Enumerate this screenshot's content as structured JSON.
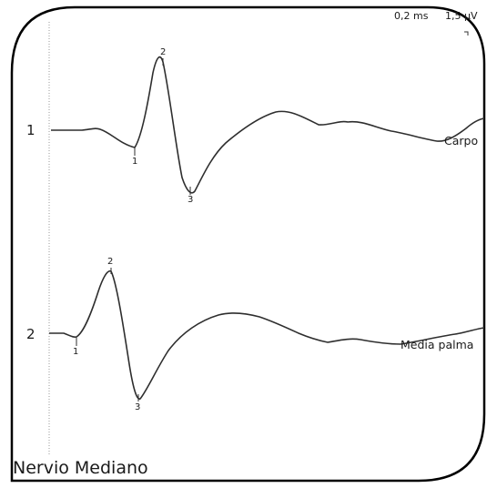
{
  "panel": {
    "title": "Nervio Mediano"
  },
  "scale": {
    "time": "0,2 ms",
    "amplitude": "1,5 µV"
  },
  "traces": [
    {
      "number": "1",
      "label": "Carpo",
      "peaks": [
        "1",
        "2",
        "3"
      ]
    },
    {
      "number": "2",
      "label": "Media palma",
      "peaks": [
        "1",
        "2",
        "3"
      ]
    }
  ],
  "colors": {
    "frame": "#000000",
    "trace": "#2e2e2e",
    "baseline_marker": "#9a9a9a",
    "text": "#1a1a1a"
  }
}
